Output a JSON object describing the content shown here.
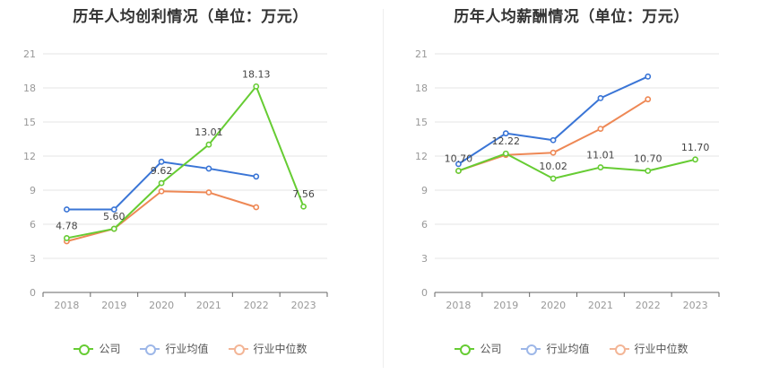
{
  "charts": [
    {
      "title": "历年人均创利情况（单位：万元）",
      "legend": [
        "公司",
        "行业均值",
        "行业中位数"
      ]
    },
    {
      "title": "历年人均薪酬情况（单位：万元）",
      "legend": [
        "公司",
        "行业均值",
        "行业中位数"
      ]
    }
  ],
  "colors": {
    "company": "#66cc33",
    "industry_avg": "#3a75d6",
    "industry_median": "#ee8855",
    "grid": "#e6e6e6",
    "axis": "#666666",
    "tick_text": "#999999",
    "label_text": "#444444"
  },
  "chart_data": [
    {
      "type": "line",
      "title": "历年人均创利情况（单位：万元）",
      "categories": [
        "2018",
        "2019",
        "2020",
        "2021",
        "2022",
        "2023"
      ],
      "ylim": [
        0,
        21
      ],
      "yticks": [
        "0",
        "3",
        "6",
        "9",
        "12",
        "15",
        "18",
        "21"
      ],
      "grid": true,
      "legend_position": "bottom",
      "series": [
        {
          "name": "公司",
          "values": [
            4.78,
            5.6,
            9.62,
            13.01,
            18.13,
            7.56
          ],
          "labels": [
            "4.78",
            "5.60",
            "9.62",
            "13.01",
            "18.13",
            "7.56"
          ]
        },
        {
          "name": "行业均值",
          "values": [
            7.3,
            7.3,
            11.5,
            10.9,
            10.2,
            null
          ]
        },
        {
          "name": "行业中位数",
          "values": [
            4.5,
            5.6,
            8.9,
            8.8,
            7.5,
            null
          ]
        }
      ]
    },
    {
      "type": "line",
      "title": "历年人均薪酬情况（单位：万元）",
      "categories": [
        "2018",
        "2019",
        "2020",
        "2021",
        "2022",
        "2023"
      ],
      "ylim": [
        0,
        21
      ],
      "yticks": [
        "0",
        "3",
        "6",
        "9",
        "12",
        "15",
        "18",
        "21"
      ],
      "grid": true,
      "legend_position": "bottom",
      "series": [
        {
          "name": "公司",
          "values": [
            10.7,
            12.22,
            10.02,
            11.01,
            10.7,
            11.7
          ],
          "labels": [
            "10.70",
            "12.22",
            "10.02",
            "11.01",
            "10.70",
            "11.70"
          ]
        },
        {
          "name": "行业均值",
          "values": [
            11.3,
            14.0,
            13.4,
            17.1,
            19.0,
            null
          ]
        },
        {
          "name": "行业中位数",
          "values": [
            10.7,
            12.1,
            12.3,
            14.4,
            17.0,
            null
          ]
        }
      ]
    }
  ]
}
